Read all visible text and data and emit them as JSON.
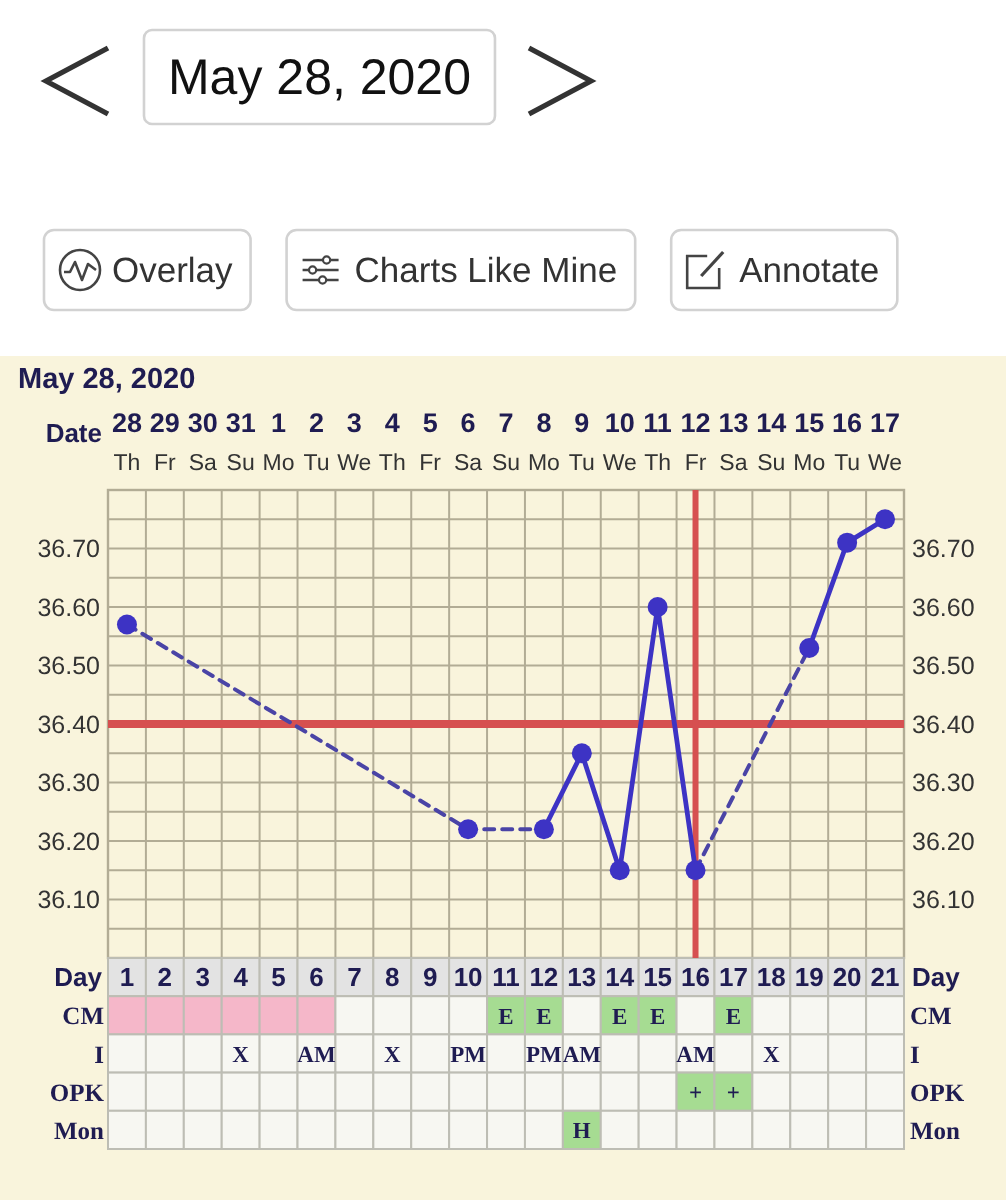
{
  "chart_data": [
    {
      "type": "other",
      "annotations": [
        "May 28, 2020",
        "Overlay",
        "Charts Like Mine",
        "Annotate"
      ]
    },
    {
      "type": "line",
      "title": "May 28, 2020",
      "xlabel": "Day",
      "x2label": "Date",
      "annotations": [
        "Th",
        "Fr",
        "Sa",
        "Su",
        "Mo",
        "Tu",
        "We",
        "Th",
        "Fr",
        "Sa",
        "Su",
        "Mo",
        "Tu",
        "We",
        "Th",
        "Fr",
        "Sa",
        "Su",
        "Mo",
        "Tu",
        "We"
      ],
      "series": [
        {
          "color": "#3d33c4",
          "x": [
            1,
            2,
            3,
            4,
            5,
            6,
            7,
            8,
            9,
            10,
            11,
            12,
            13,
            14,
            15,
            16,
            17,
            18,
            19,
            20,
            21
          ],
          "values": [
            36.57,
            null,
            null,
            null,
            null,
            null,
            null,
            null,
            null,
            36.22,
            null,
            36.22,
            36.35,
            36.15,
            36.6,
            36.15,
            null,
            null,
            36.53,
            36.71,
            36.75
          ]
        },
        {
          "color": "#4a44a6",
          "x": [
            1,
            10,
            12
          ],
          "values": [
            36.57,
            36.22,
            36.22
          ],
          "line_style": "dashed",
          "marker": "none"
        },
        {
          "color": "#4a44a6",
          "x": [
            16,
            19
          ],
          "values": [
            36.15,
            36.53
          ],
          "line_style": "dashed",
          "marker": "none"
        }
      ],
      "xlim": [
        0.5,
        21.5
      ],
      "xticks": [
        1,
        2,
        3,
        4,
        5,
        6,
        7,
        8,
        9,
        10,
        11,
        12,
        13,
        14,
        15,
        16,
        17,
        18,
        19,
        20,
        21
      ],
      "x2lim": [
        "2020-05-27T12:00",
        "2020-06-17T12:00"
      ],
      "x2ticks": [
        {
          "value": "2020-05-28",
          "label": "28"
        },
        {
          "value": "2020-05-29",
          "label": "29"
        },
        {
          "value": "2020-05-30",
          "label": "30"
        },
        {
          "value": "2020-05-31",
          "label": "31"
        },
        {
          "value": "2020-06-01",
          "label": "1"
        },
        {
          "value": "2020-06-02",
          "label": "2"
        },
        {
          "value": "2020-06-03",
          "label": "3"
        },
        {
          "value": "2020-06-04",
          "label": "4"
        },
        {
          "value": "2020-06-05",
          "label": "5"
        },
        {
          "value": "2020-06-06",
          "label": "6"
        },
        {
          "value": "2020-06-07",
          "label": "7"
        },
        {
          "value": "2020-06-08",
          "label": "8"
        },
        {
          "value": "2020-06-09",
          "label": "9"
        },
        {
          "value": "2020-06-10",
          "label": "10"
        },
        {
          "value": "2020-06-11",
          "label": "11"
        },
        {
          "value": "2020-06-12",
          "label": "12"
        },
        {
          "value": "2020-06-13",
          "label": "13"
        },
        {
          "value": "2020-06-14",
          "label": "14"
        },
        {
          "value": "2020-06-15",
          "label": "15"
        },
        {
          "value": "2020-06-16",
          "label": "16"
        },
        {
          "value": "2020-06-17",
          "label": "17"
        }
      ],
      "ylim": [
        36.0,
        36.8
      ],
      "yticks": [
        {
          "value": 36.05,
          "label": null
        },
        {
          "value": 36.1,
          "label": "36.10"
        },
        {
          "value": 36.15,
          "label": null
        },
        {
          "value": 36.2,
          "label": "36.20"
        },
        {
          "value": 36.25,
          "label": null
        },
        {
          "value": 36.3,
          "label": "36.30"
        },
        {
          "value": 36.35,
          "label": null
        },
        {
          "value": 36.4,
          "label": "36.40"
        },
        {
          "value": 36.45,
          "label": null
        },
        {
          "value": 36.5,
          "label": "36.50"
        },
        {
          "value": 36.55,
          "label": null
        },
        {
          "value": 36.6,
          "label": "36.60"
        },
        {
          "value": 36.65,
          "label": null
        },
        {
          "value": 36.7,
          "label": "36.70"
        },
        {
          "value": 36.75,
          "label": null
        }
      ],
      "y2lim": [
        36.0,
        36.8
      ],
      "y2ticks": [
        {
          "value": 36.05,
          "label": null
        },
        {
          "value": 36.1,
          "label": "36.10"
        },
        {
          "value": 36.15,
          "label": null
        },
        {
          "value": 36.2,
          "label": "36.20"
        },
        {
          "value": 36.25,
          "label": null
        },
        {
          "value": 36.3,
          "label": "36.30"
        },
        {
          "value": 36.35,
          "label": null
        },
        {
          "value": 36.4,
          "label": "36.40"
        },
        {
          "value": 36.45,
          "label": null
        },
        {
          "value": 36.5,
          "label": "36.50"
        },
        {
          "value": 36.55,
          "label": null
        },
        {
          "value": 36.6,
          "label": "36.60"
        },
        {
          "value": 36.65,
          "label": null
        },
        {
          "value": 36.7,
          "label": "36.70"
        },
        {
          "value": 36.75,
          "label": null
        }
      ],
      "ref_lines": [
        {
          "axis": "y",
          "value": 36.4,
          "color": "#d65050"
        },
        {
          "axis": "x",
          "value": 16,
          "color": "#d65050"
        }
      ],
      "grid": true,
      "marker": "circle",
      "line_style": "solid"
    },
    {
      "type": "other",
      "y_categories": [
        "CM",
        "I",
        "OPK",
        "Mon"
      ],
      "y2_categories": [
        "CM",
        "I",
        "OPK",
        "Mon"
      ],
      "cell_labels": [
        [
          null,
          null,
          null,
          null,
          null,
          null,
          null,
          null,
          null,
          null,
          "E",
          "E",
          null,
          "E",
          "E",
          null,
          "E",
          null,
          null,
          null,
          null
        ],
        [
          null,
          null,
          null,
          "X",
          null,
          "AM",
          null,
          "X",
          null,
          "PM",
          null,
          "PM",
          "AM",
          null,
          null,
          "AM",
          null,
          "X",
          null,
          null,
          null
        ],
        [
          null,
          null,
          null,
          null,
          null,
          null,
          null,
          null,
          null,
          null,
          null,
          null,
          null,
          null,
          null,
          "+",
          "+",
          null,
          null,
          null,
          null
        ],
        [
          null,
          null,
          null,
          null,
          null,
          null,
          null,
          null,
          null,
          null,
          null,
          null,
          "H",
          null,
          null,
          null,
          null,
          null,
          null,
          null,
          null
        ]
      ],
      "colors": [
        [
          "#f5b7c9",
          "#f5b7c9",
          "#f5b7c9",
          "#f5b7c9",
          "#f5b7c9",
          "#f5b7c9",
          null,
          null,
          null,
          null,
          "#a6dc92",
          "#a6dc92",
          null,
          "#a6dc92",
          "#a6dc92",
          null,
          "#a6dc92",
          null,
          null,
          null,
          null
        ],
        [
          null,
          null,
          null,
          null,
          null,
          null,
          null,
          null,
          null,
          null,
          null,
          null,
          null,
          null,
          null,
          null,
          null,
          null,
          null,
          null,
          null
        ],
        [
          null,
          null,
          null,
          null,
          null,
          null,
          null,
          null,
          null,
          null,
          null,
          null,
          null,
          null,
          null,
          "#a6dc92",
          "#a6dc92",
          null,
          null,
          null,
          null
        ],
        [
          null,
          null,
          null,
          null,
          null,
          null,
          null,
          null,
          null,
          null,
          null,
          null,
          "#a6dc92",
          null,
          null,
          null,
          null,
          null,
          null,
          null,
          null
        ]
      ]
    }
  ]
}
